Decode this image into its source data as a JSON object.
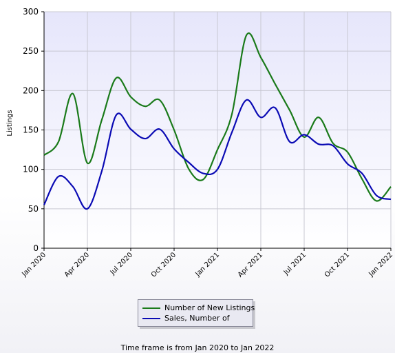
{
  "chart_data": {
    "type": "line",
    "ylabel": "Listings",
    "ylim": [
      0,
      300
    ],
    "yticks": [
      0,
      50,
      100,
      150,
      200,
      250,
      300
    ],
    "xtick_labels": [
      "Jan 2020",
      "Apr 2020",
      "Jul 2020",
      "Oct 2020",
      "Jan 2021",
      "Apr 2021",
      "Jul 2021",
      "Oct 2021",
      "Jan 2022"
    ],
    "x": [
      "Jan 2020",
      "Feb 2020",
      "Mar 2020",
      "Apr 2020",
      "May 2020",
      "Jun 2020",
      "Jul 2020",
      "Aug 2020",
      "Sep 2020",
      "Oct 2020",
      "Nov 2020",
      "Dec 2020",
      "Jan 2021",
      "Feb 2021",
      "Mar 2021",
      "Apr 2021",
      "May 2021",
      "Jun 2021",
      "Jul 2021",
      "Aug 2021",
      "Sep 2021",
      "Oct 2021",
      "Nov 2021",
      "Dec 2021",
      "Jan 2022"
    ],
    "series": [
      {
        "name": "Number of New Listings",
        "color": "#1a7a1a",
        "values": [
          118,
          135,
          196,
          108,
          163,
          216,
          192,
          180,
          188,
          150,
          101,
          87,
          125,
          170,
          270,
          242,
          208,
          175,
          141,
          166,
          133,
          122,
          88,
          60,
          78
        ]
      },
      {
        "name": "Sales, Number of",
        "color": "#0a0ab4",
        "values": [
          55,
          91,
          78,
          50,
          98,
          169,
          151,
          139,
          151,
          126,
          109,
          95,
          100,
          147,
          188,
          166,
          178,
          135,
          144,
          132,
          130,
          107,
          95,
          67,
          62
        ]
      }
    ],
    "grid": true,
    "legend": "bottom"
  },
  "footnote": "Time frame is from Jan 2020 to Jan 2022"
}
